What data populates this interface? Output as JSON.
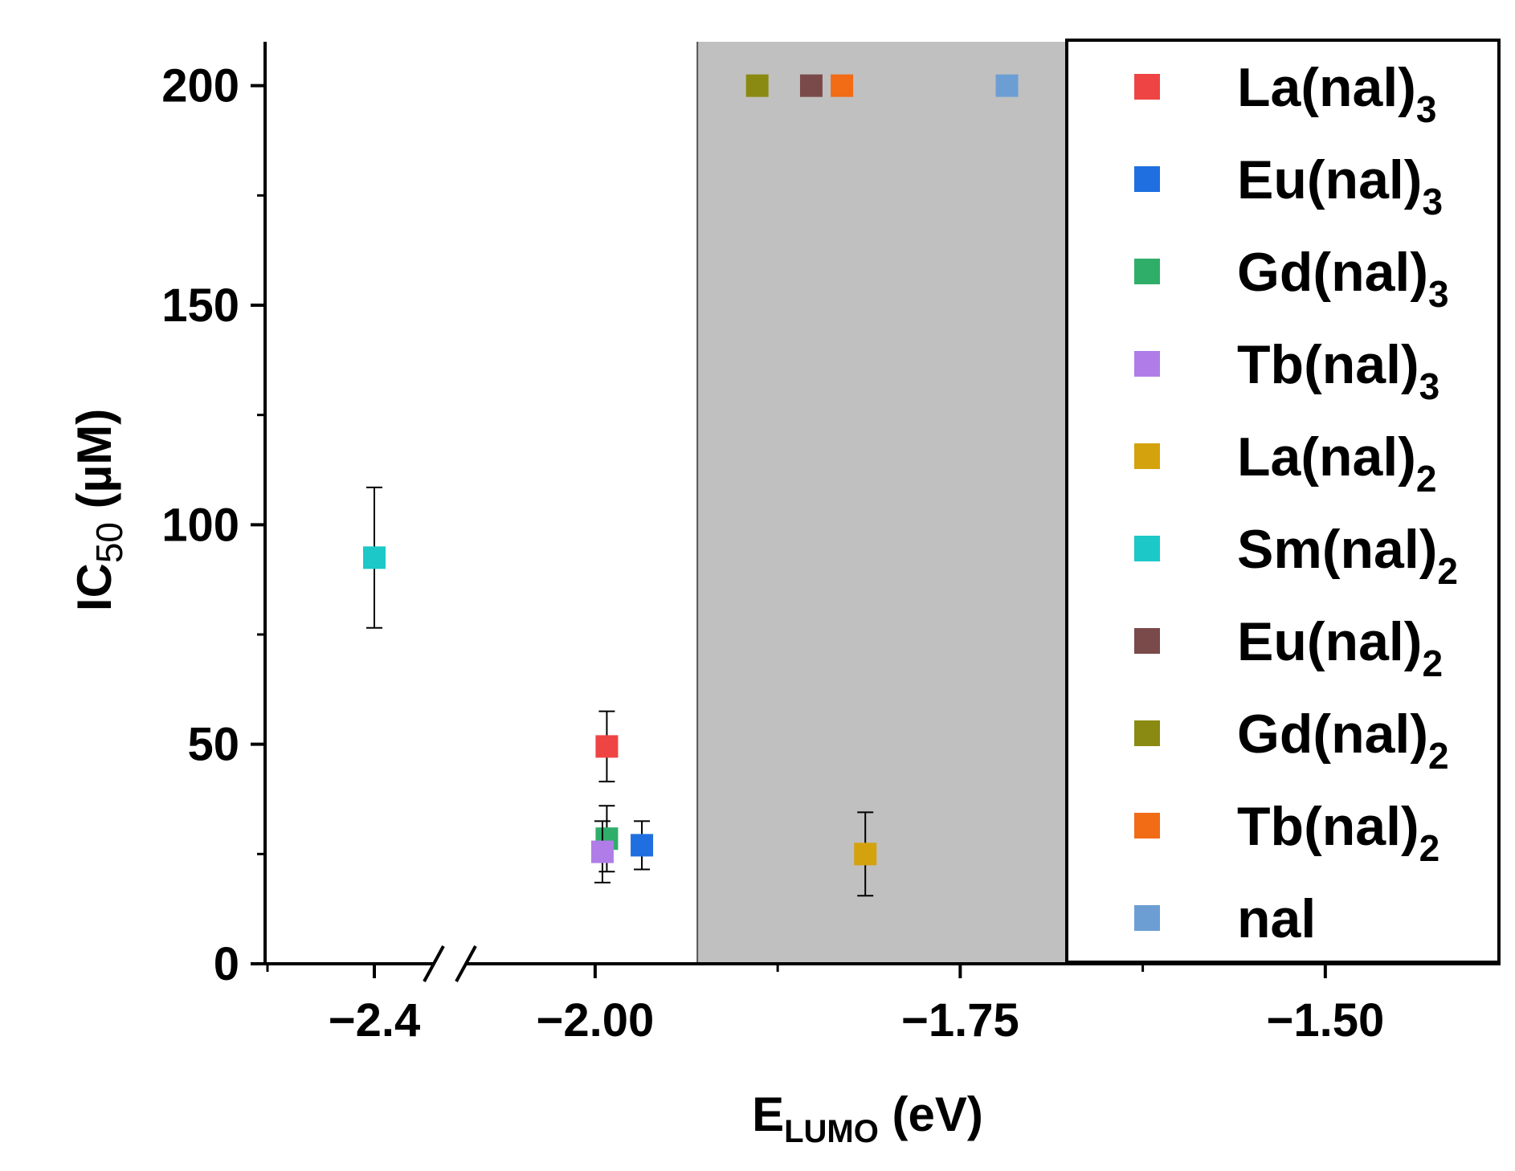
{
  "chart_data": {
    "type": "scatter",
    "xlabel": {
      "main": "E",
      "sub": "LUMO",
      "rest": " (eV)"
    },
    "ylabel": {
      "main": "IC",
      "sub": "50",
      "rest": " (µM)"
    },
    "ylim": [
      0,
      210
    ],
    "yticks": [
      0,
      50,
      100,
      150,
      200
    ],
    "y_tick_labels": [
      "0",
      "50",
      "100",
      "150",
      "200"
    ],
    "x_axis_broken": true,
    "x_break_segment": {
      "xlim": [
        -2.52,
        -2.32
      ],
      "ticks": [
        -2.4
      ],
      "tick_labels": [
        "−2.4"
      ]
    },
    "x_main_segment": {
      "xlim": [
        -2.105,
        -1.38
      ],
      "ticks": [
        -2.0,
        -1.75,
        -1.5
      ],
      "tick_labels": [
        "−2.00",
        "−1.75",
        "−1.50"
      ]
    },
    "shaded_region": {
      "x": [
        -1.93,
        -1.655
      ],
      "color": "#c0c0c0"
    },
    "legend_position": "right",
    "grid": false,
    "series": [
      {
        "name_main": "La(nal)",
        "name_sub": "3",
        "color": "#ef4444",
        "x": -1.992,
        "y": 49.5,
        "yerr": 8
      },
      {
        "name_main": "Eu(nal)",
        "name_sub": "3",
        "color": "#1f6fe0",
        "x": -1.968,
        "y": 27,
        "yerr": 5.5
      },
      {
        "name_main": "Gd(nal)",
        "name_sub": "3",
        "color": "#2fae6a",
        "x": -1.992,
        "y": 28.5,
        "yerr": 7.5
      },
      {
        "name_main": "Tb(nal)",
        "name_sub": "3",
        "color": "#b07de8",
        "x": -1.995,
        "y": 25.5,
        "yerr": 7
      },
      {
        "name_main": "La(nal)",
        "name_sub": "2",
        "color": "#d4a20c",
        "x": -1.815,
        "y": 25,
        "yerr": 9.5
      },
      {
        "name_main": "Sm(nal)",
        "name_sub": "2",
        "color": "#1cc8c8",
        "x": -2.4,
        "y": 92.5,
        "yerr": 16,
        "segment": "break"
      },
      {
        "name_main": "Eu(nal)",
        "name_sub": "2",
        "color": "#7a4a4a",
        "x": -1.852,
        "y": 200
      },
      {
        "name_main": "Gd(nal)",
        "name_sub": "2",
        "color": "#8a8a12",
        "x": -1.889,
        "y": 200
      },
      {
        "name_main": "Tb(nal)",
        "name_sub": "2",
        "color": "#f26b15",
        "x": -1.831,
        "y": 200
      },
      {
        "name_main": "nal",
        "name_sub": "",
        "color": "#6c9ed4",
        "x": -1.718,
        "y": 200
      }
    ]
  }
}
